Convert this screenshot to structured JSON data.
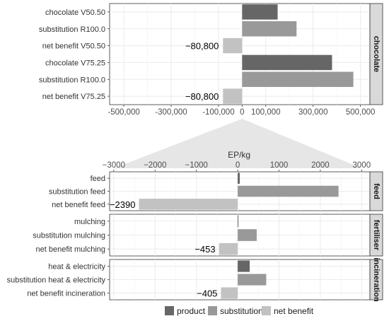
{
  "chart_data": [
    {
      "type": "bar",
      "orientation": "horizontal",
      "facet": "chocolate",
      "categories": [
        "chocolate V50.50",
        "substitution R100.0",
        "net benefit V50.50",
        "chocolate V75.25",
        "substitution R100.0",
        "net benefit V75.25"
      ],
      "values": [
        150000,
        230000,
        -80800,
        380000,
        470000,
        -80800
      ],
      "kinds": [
        "product",
        "substitution",
        "net benefit",
        "product",
        "substitution",
        "net benefit"
      ],
      "data_labels": [
        "",
        "",
        "−80,800",
        "",
        "",
        "−80,800"
      ],
      "xlim": [
        -560000,
        540000
      ],
      "x_ticks": [
        -500000,
        -300000,
        -100000,
        0,
        100000,
        300000,
        500000
      ],
      "x_tick_labels": [
        "-500,000",
        "-300,000",
        "-100,000",
        "0",
        "100,000",
        "300,000",
        "500,000"
      ],
      "grid": true
    },
    {
      "type": "bar",
      "orientation": "horizontal",
      "xlabel": "EP/kg",
      "xlim": [
        -3100,
        3200
      ],
      "x_ticks": [
        -3000,
        -2000,
        -1000,
        0,
        1000,
        2000,
        3000
      ],
      "x_tick_labels": [
        "−3000",
        "−2000",
        "−1000",
        "0",
        "1000",
        "2000",
        "3000"
      ],
      "x_axis_position": "top",
      "grid": true,
      "facets": [
        {
          "name": "feed",
          "categories": [
            "feed",
            "substitution feed",
            "net benefit feed"
          ],
          "values": [
            50,
            2440,
            -2390
          ],
          "kinds": [
            "product",
            "substitution",
            "net benefit"
          ],
          "data_labels": [
            "",
            "",
            "−2390"
          ]
        },
        {
          "name": "fertiliser",
          "categories": [
            "mulching",
            "substitution mulching",
            "net benefit mulching"
          ],
          "values": [
            10,
            460,
            -453
          ],
          "kinds": [
            "product",
            "substitution",
            "net benefit"
          ],
          "data_labels": [
            "",
            "",
            "−453"
          ]
        },
        {
          "name": "incineration",
          "categories": [
            "heat & electricity",
            "substitution heat & electricity",
            "net benefit incineration"
          ],
          "values": [
            290,
            690,
            -405
          ],
          "kinds": [
            "product",
            "substitution",
            "net benefit"
          ],
          "data_labels": [
            "",
            "",
            "−405"
          ]
        }
      ]
    }
  ],
  "legend": {
    "position": "bottom",
    "items": [
      {
        "label": "product",
        "color": "#666666"
      },
      {
        "label": "substitution",
        "color": "#999999"
      },
      {
        "label": "net benefit",
        "color": "#c2c2c2"
      }
    ]
  },
  "colors": {
    "product": "#666666",
    "substitution": "#999999",
    "net benefit": "#c2c2c2",
    "strip_background": "#d9d9d9",
    "grid": "#ebebeb"
  }
}
